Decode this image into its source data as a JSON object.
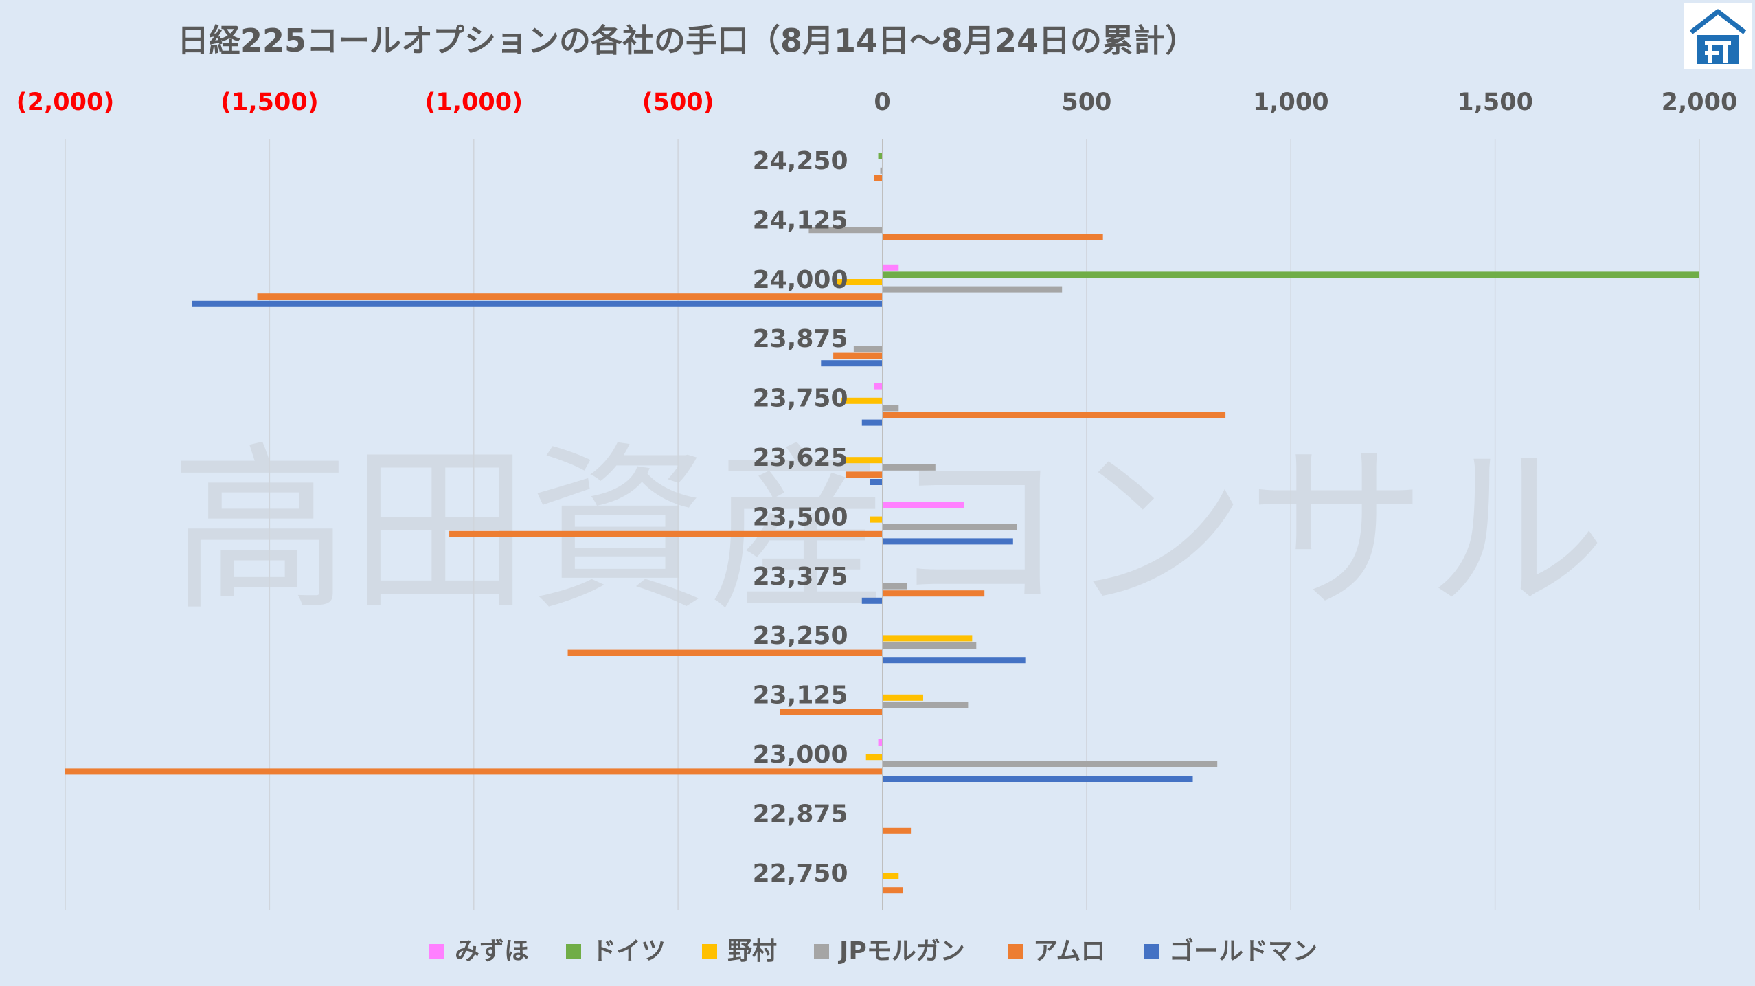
{
  "logo": {
    "name": "takada-logo",
    "color": "#1f6fb5"
  },
  "watermark_text": "高田資産コンサル",
  "chart_data": {
    "type": "bar",
    "orientation": "horizontal",
    "title": "日経225コールオプションの各社の手口（8月14日～8月24日の累計）",
    "xlim": [
      -2000,
      2000
    ],
    "xticks": [
      {
        "value": -2000,
        "label": "(2,000)"
      },
      {
        "value": -1500,
        "label": "(1,500)"
      },
      {
        "value": -1000,
        "label": "(1,000)"
      },
      {
        "value": -500,
        "label": "(500)"
      },
      {
        "value": 0,
        "label": "0"
      },
      {
        "value": 500,
        "label": "500"
      },
      {
        "value": 1000,
        "label": "1,000"
      },
      {
        "value": 1500,
        "label": "1,500"
      },
      {
        "value": 2000,
        "label": "2,000"
      }
    ],
    "negative_tick_color": "#ff0000",
    "positive_tick_color": "#595959",
    "categories": [
      "24,250",
      "24,125",
      "24,000",
      "23,875",
      "23,750",
      "23,625",
      "23,500",
      "23,375",
      "23,250",
      "23,125",
      "23,000",
      "22,875",
      "22,750"
    ],
    "grid": true,
    "legend_position": "bottom",
    "series": [
      {
        "name": "みずほ",
        "color": "#ff80ff",
        "values": [
          0,
          0,
          40,
          0,
          -20,
          0,
          200,
          0,
          0,
          0,
          -10,
          0,
          0
        ]
      },
      {
        "name": "ドイツ",
        "color": "#70ad47",
        "values": [
          -10,
          0,
          2000,
          0,
          0,
          0,
          0,
          0,
          0,
          0,
          0,
          0,
          0
        ]
      },
      {
        "name": "野村",
        "color": "#ffc000",
        "values": [
          0,
          0,
          -120,
          0,
          -100,
          -100,
          -30,
          0,
          220,
          100,
          -40,
          0,
          40
        ]
      },
      {
        "name": "JPモルガン",
        "color": "#a5a5a5",
        "values": [
          -5,
          -180,
          440,
          -70,
          40,
          130,
          330,
          60,
          230,
          210,
          820,
          0,
          0
        ]
      },
      {
        "name": "アムロ",
        "color": "#ed7d31",
        "values": [
          -20,
          540,
          -1530,
          -120,
          840,
          -90,
          -1060,
          250,
          -770,
          -250,
          -2000,
          70,
          50
        ]
      },
      {
        "name": "ゴールドマン",
        "color": "#4472c4",
        "values": [
          0,
          0,
          -1690,
          -150,
          -50,
          -30,
          320,
          -50,
          350,
          0,
          760,
          0,
          0
        ]
      }
    ]
  }
}
